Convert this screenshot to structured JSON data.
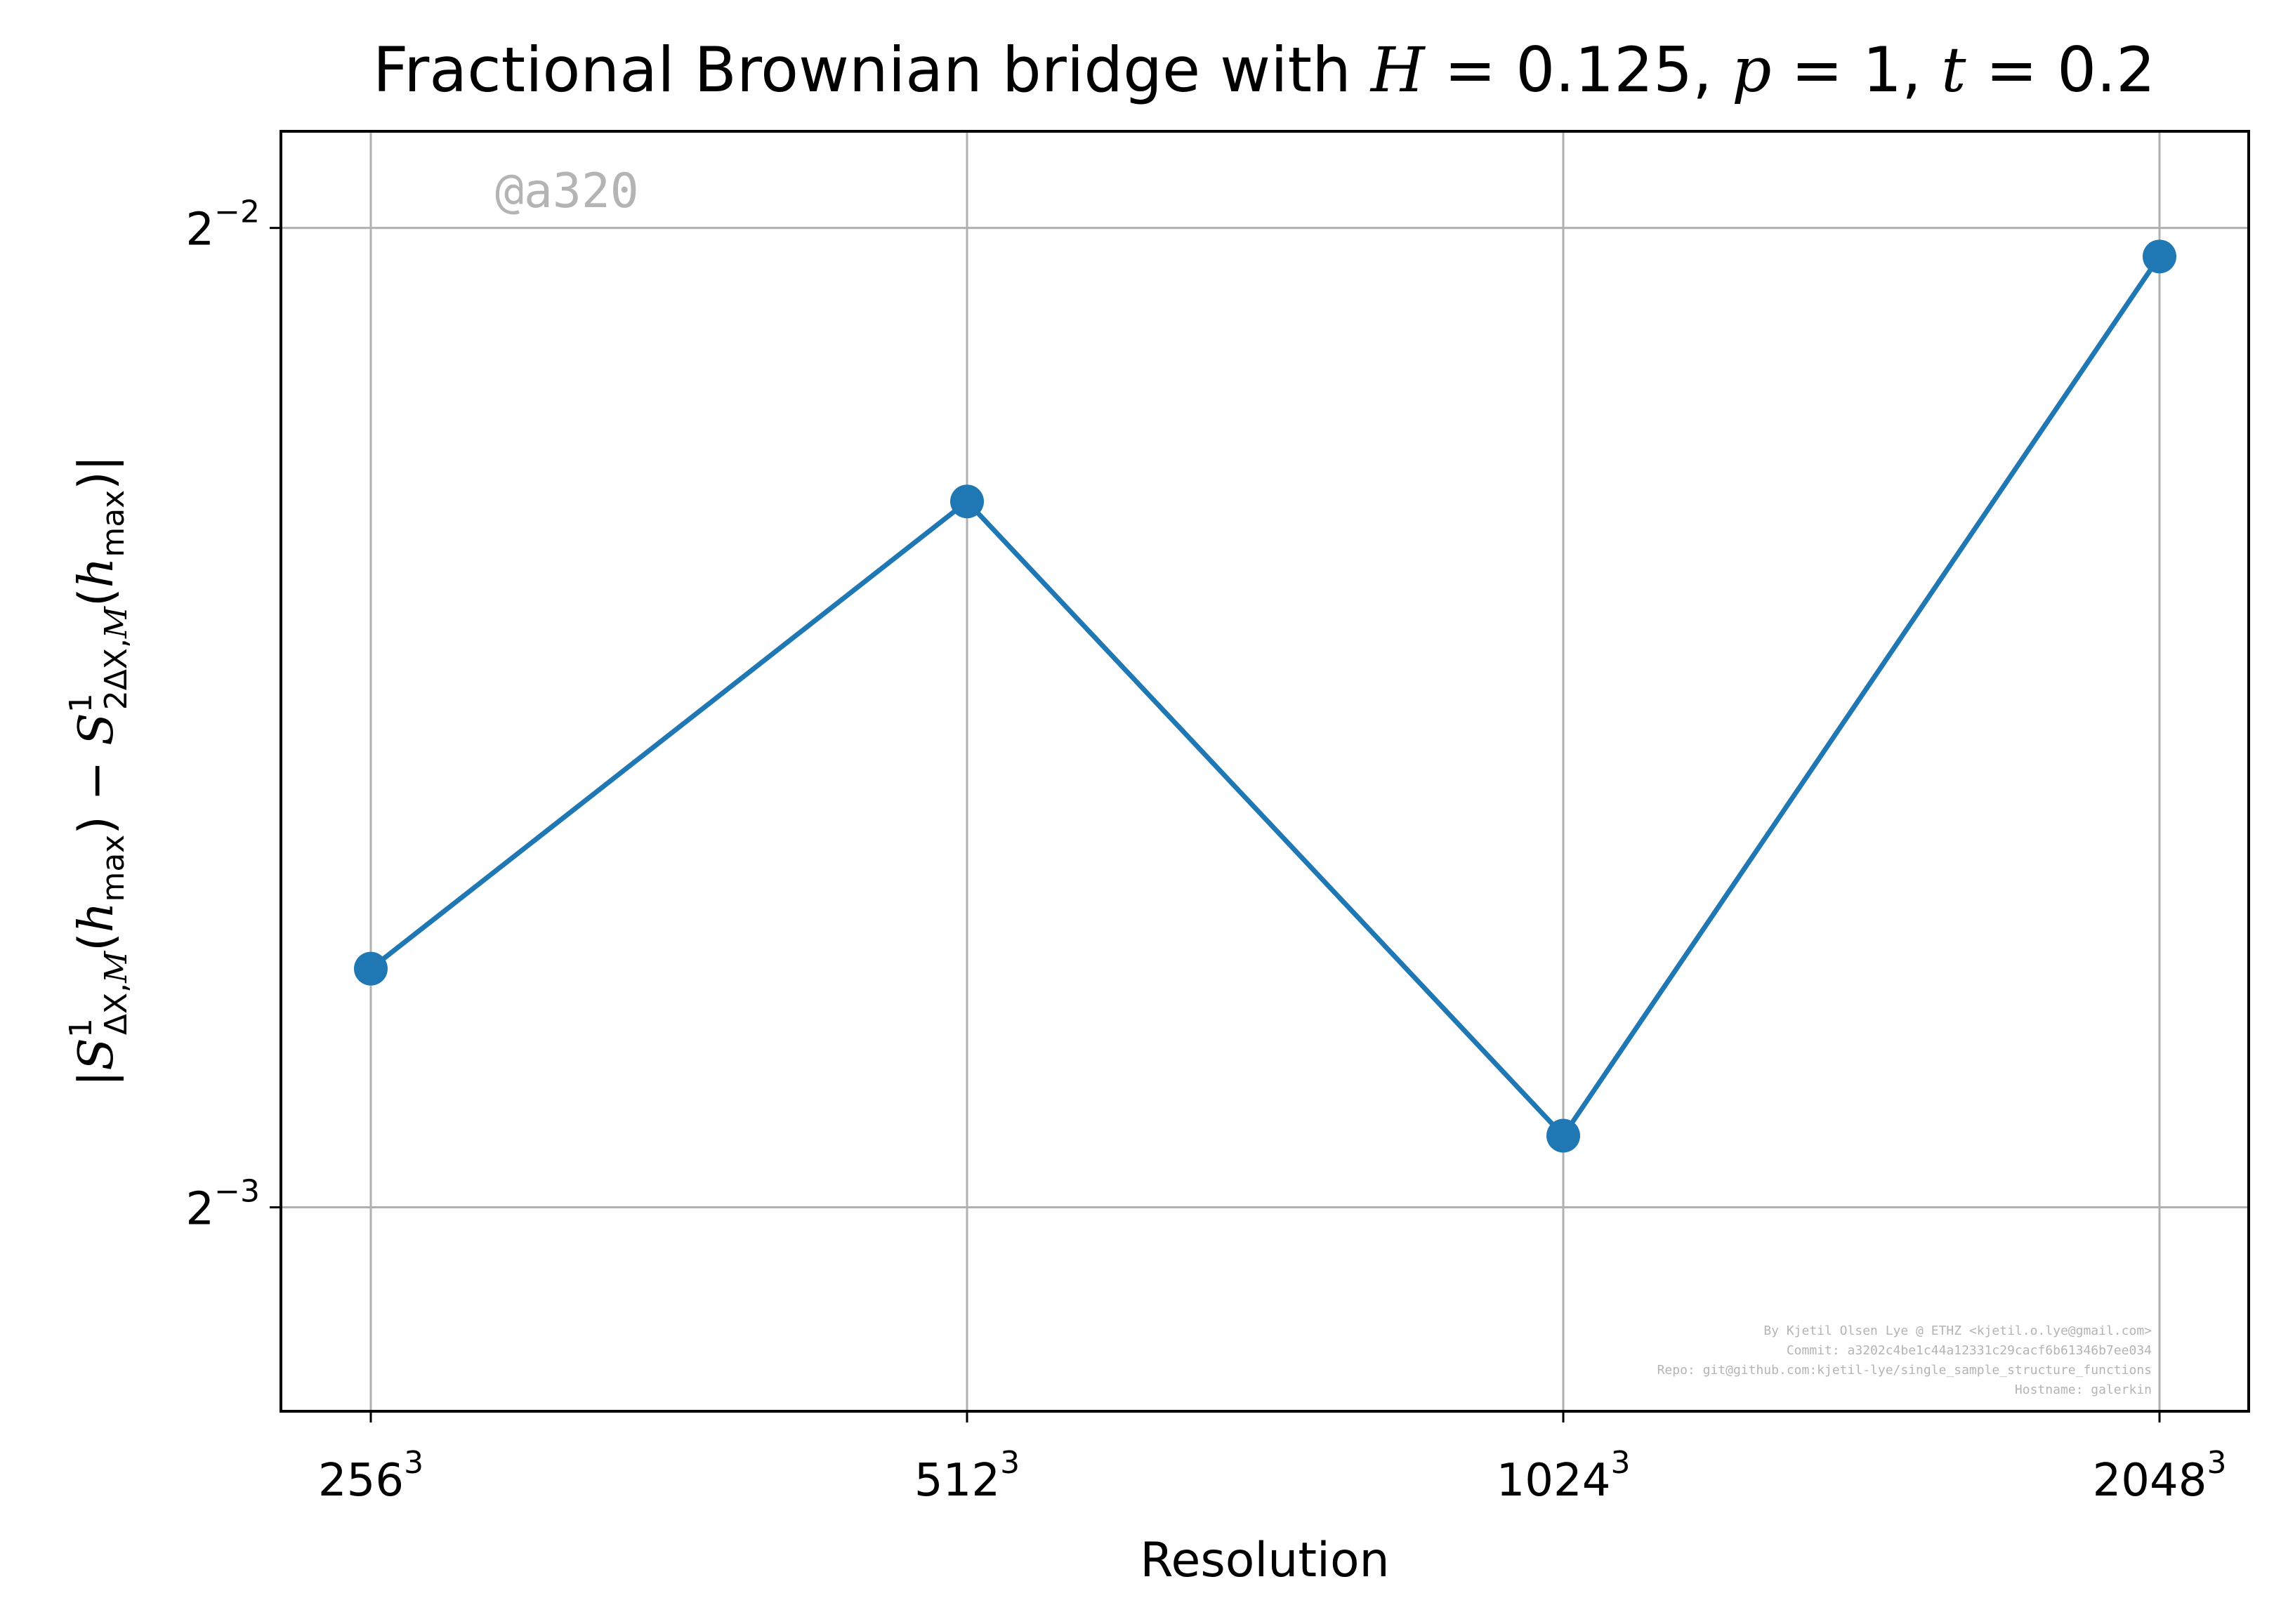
{
  "chart_data": {
    "type": "line",
    "title_parts": {
      "prefix": "Fractional Brownian bridge with ",
      "H_sym": "H",
      "H_val": " = 0.125, ",
      "p_sym": "p",
      "p_val": " = 1, ",
      "t_sym": "t",
      "t_val": " = 0.2"
    },
    "xlabel": "Resolution",
    "ylabel": "|S¹ΔX,M(hmax) − S¹2ΔX,M(hmax)|",
    "categories": [
      {
        "base": "256",
        "exp": "3"
      },
      {
        "base": "512",
        "exp": "3"
      },
      {
        "base": "1024",
        "exp": "3"
      },
      {
        "base": "2048",
        "exp": "3"
      }
    ],
    "y_scale": "log2",
    "yticks": [
      {
        "base": "2",
        "exp": "−2",
        "value": 0.25
      },
      {
        "base": "2",
        "exp": "−3",
        "value": 0.125
      }
    ],
    "ylim": [
      0.1082,
      0.2677
    ],
    "series": [
      {
        "name": "",
        "color": "#1f77b4",
        "marker": "circle",
        "values": [
          0.148,
          0.206,
          0.1315,
          0.245
        ]
      }
    ],
    "grid": true,
    "watermark": "@a320",
    "credits": [
      "By Kjetil Olsen Lye @ ETHZ <kjetil.o.lye@gmail.com>",
      "Commit: a3202c4be1c44a12331c29cacf6b61346b7ee034",
      "Repo: git@github.com:kjetil-lye/single_sample_structure_functions",
      "Hostname: galerkin"
    ]
  }
}
